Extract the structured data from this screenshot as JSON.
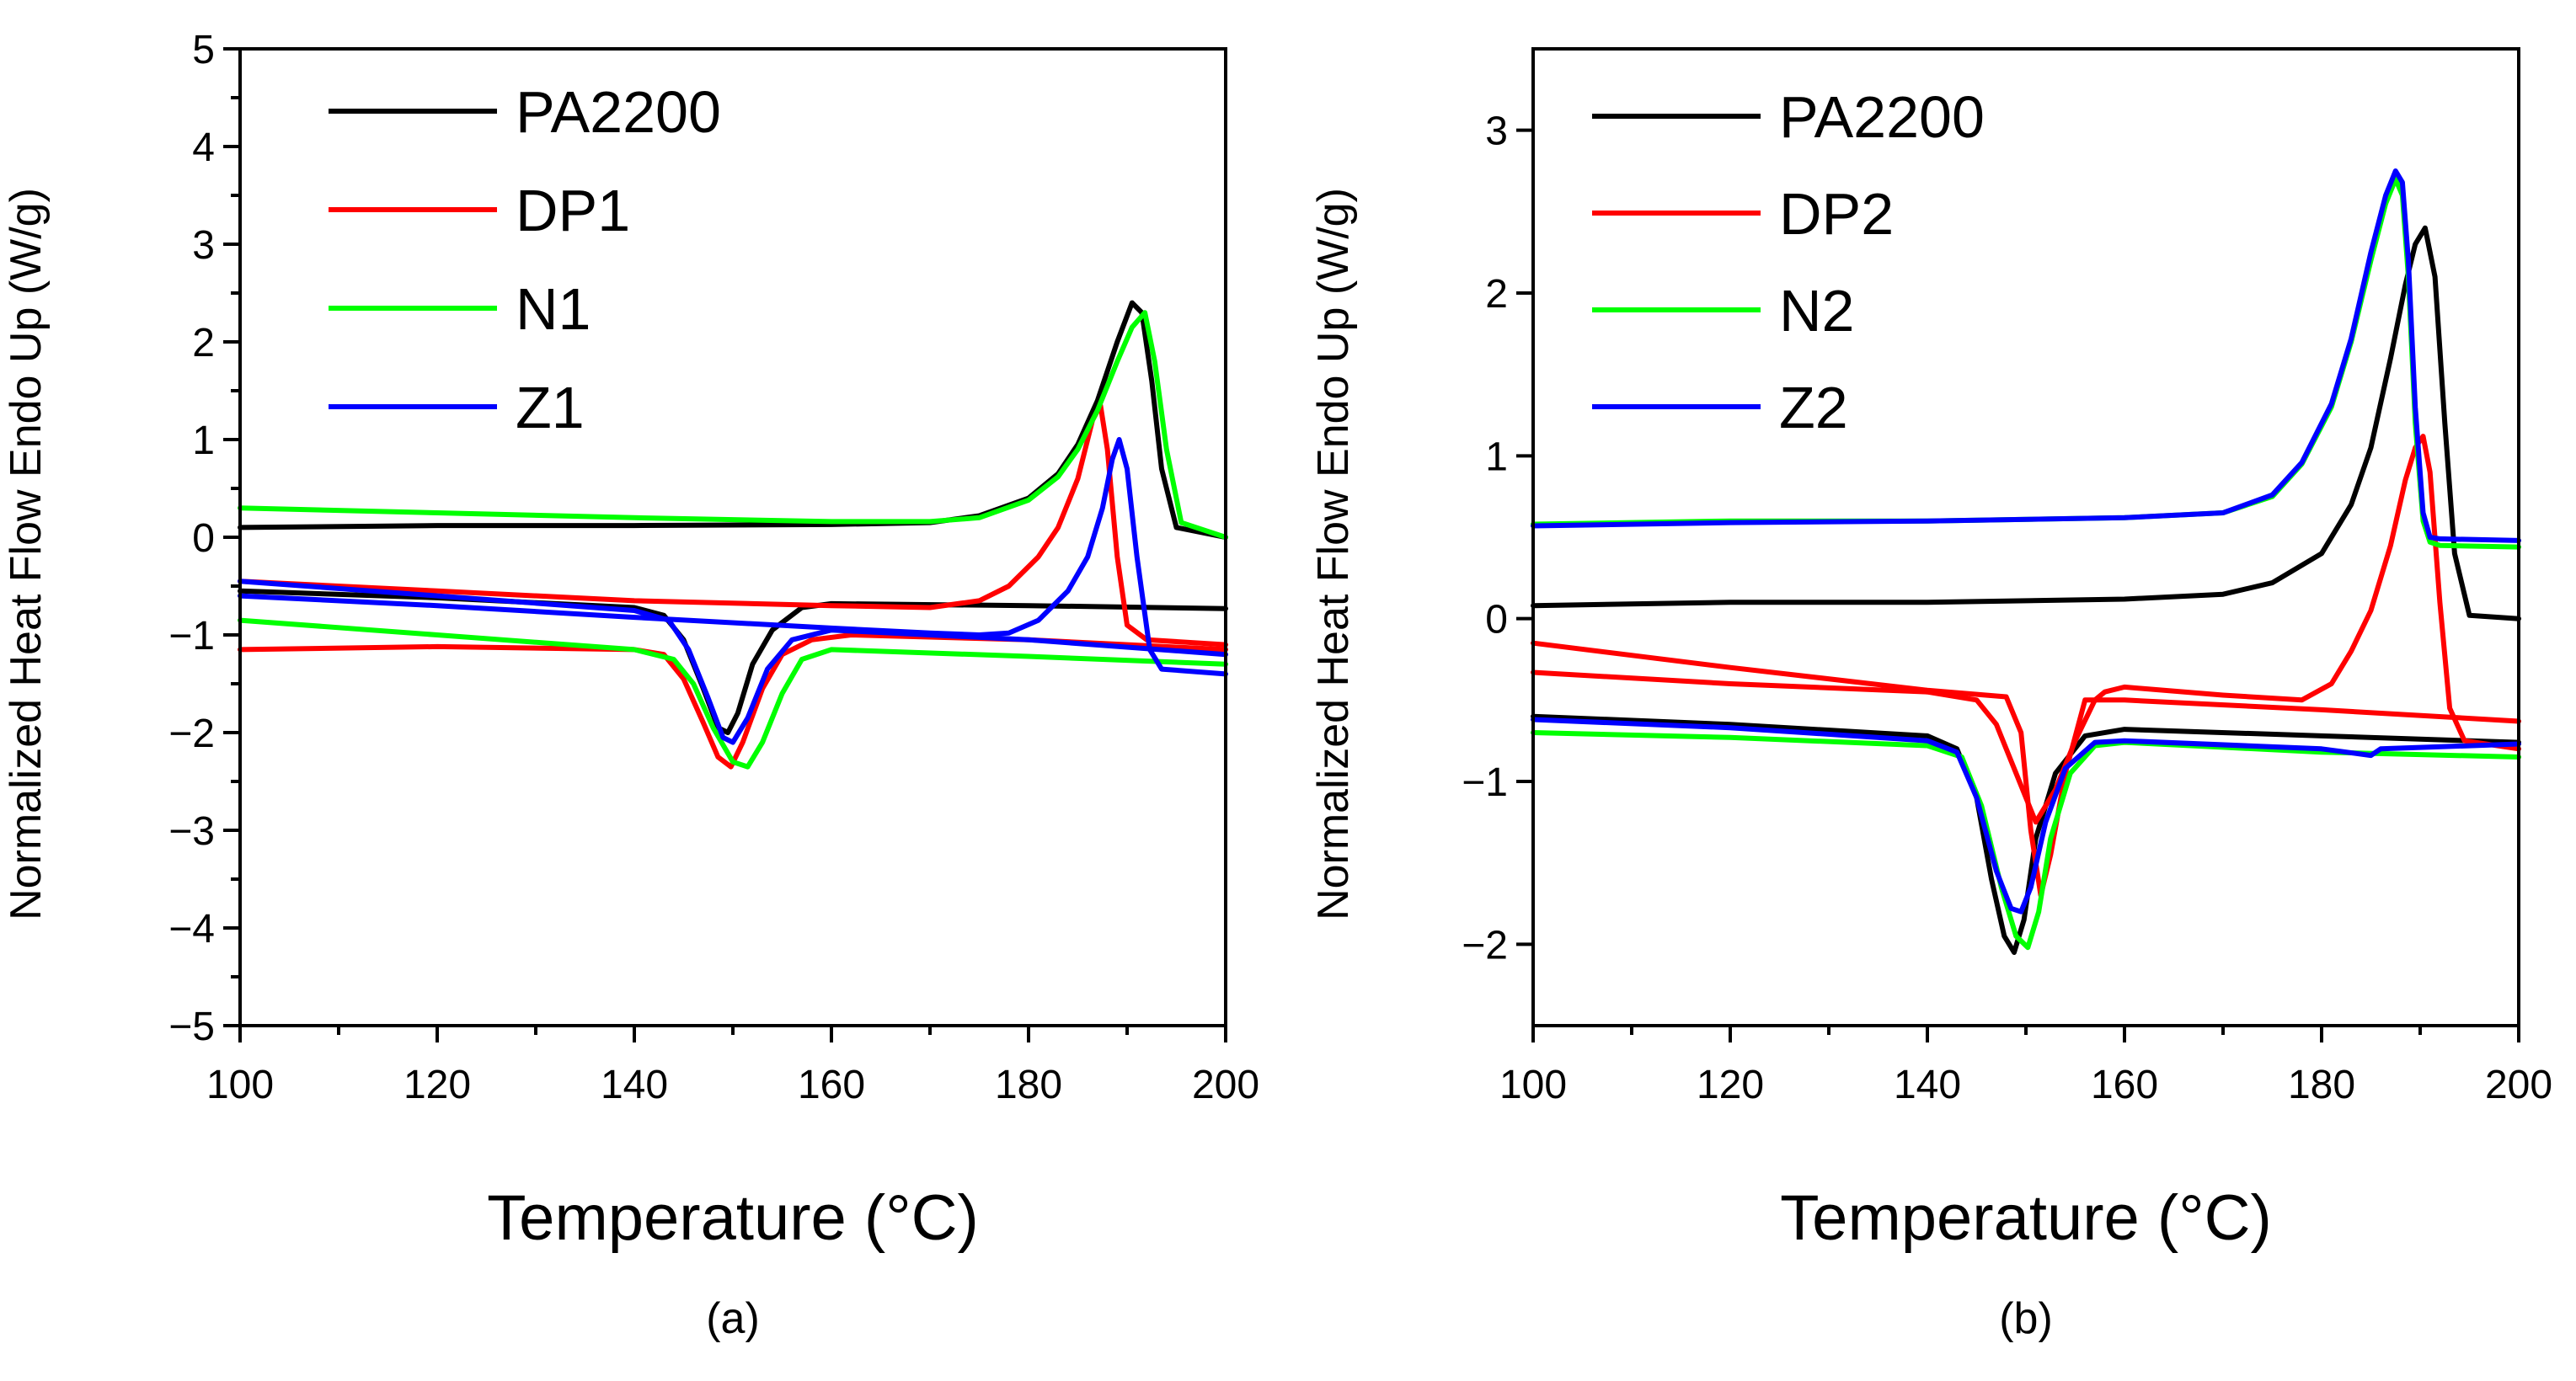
{
  "chart_data": [
    {
      "type": "line",
      "panel_label": "(a)",
      "xlabel": "Temperature (°C)",
      "ylabel": "Normalized Heat Flow Endo Up (W/g)",
      "xlim": [
        100,
        200
      ],
      "ylim": [
        -5,
        5
      ],
      "xticks": [
        100,
        120,
        140,
        160,
        180,
        200
      ],
      "yticks": [
        -5,
        -4,
        -3,
        -2,
        -1,
        0,
        1,
        2,
        3,
        4,
        5
      ],
      "xtick_labels": [
        "100",
        "120",
        "140",
        "160",
        "180",
        "200"
      ],
      "ytick_labels": [
        "−5",
        "−4",
        "−3",
        "−2",
        "−1",
        "0",
        "1",
        "2",
        "3",
        "4",
        "5"
      ],
      "legend": [
        "PA2200",
        "DP1",
        "N1",
        "Z1"
      ],
      "series": [
        {
          "name": "PA2200 heating",
          "color": "#000000",
          "x": [
            100,
            120,
            140,
            160,
            170,
            175,
            180,
            183,
            185,
            187,
            189,
            190.5,
            191.5,
            192.5,
            193.5,
            195,
            200
          ],
          "y": [
            0.1,
            0.12,
            0.12,
            0.13,
            0.15,
            0.22,
            0.4,
            0.65,
            0.95,
            1.4,
            2.0,
            2.4,
            2.3,
            1.6,
            0.7,
            0.1,
            0.0
          ]
        },
        {
          "name": "PA2200 cooling",
          "color": "#000000",
          "x": [
            100,
            120,
            140,
            143,
            145,
            147,
            148.5,
            149.5,
            150.5,
            152,
            154,
            157,
            160,
            180,
            200
          ],
          "y": [
            -0.55,
            -0.62,
            -0.72,
            -0.8,
            -1.05,
            -1.55,
            -1.95,
            -2.0,
            -1.8,
            -1.3,
            -0.95,
            -0.72,
            -0.68,
            -0.7,
            -0.73
          ]
        },
        {
          "name": "DP1 heating",
          "color": "#ff0000",
          "x": [
            100,
            120,
            140,
            160,
            170,
            175,
            178,
            181,
            183,
            185,
            186.5,
            187.3,
            188,
            189,
            190,
            192,
            200
          ],
          "y": [
            -0.45,
            -0.55,
            -0.65,
            -0.7,
            -0.72,
            -0.65,
            -0.5,
            -0.2,
            0.1,
            0.6,
            1.2,
            1.35,
            0.9,
            -0.2,
            -0.9,
            -1.05,
            -1.1
          ]
        },
        {
          "name": "DP1 cooling",
          "color": "#ff0000",
          "x": [
            100,
            120,
            140,
            143,
            145,
            147,
            148.5,
            149.8,
            151,
            153,
            155,
            158,
            162,
            180,
            200
          ],
          "y": [
            -1.15,
            -1.12,
            -1.15,
            -1.2,
            -1.45,
            -1.9,
            -2.25,
            -2.35,
            -2.1,
            -1.55,
            -1.2,
            -1.05,
            -1.0,
            -1.05,
            -1.15
          ]
        },
        {
          "name": "N1 heating",
          "color": "#00ff00",
          "x": [
            100,
            120,
            140,
            160,
            170,
            175,
            180,
            183,
            185,
            187,
            189,
            190.5,
            191.8,
            192.8,
            194,
            195.5,
            200
          ],
          "y": [
            0.3,
            0.25,
            0.2,
            0.16,
            0.16,
            0.2,
            0.38,
            0.62,
            0.9,
            1.3,
            1.8,
            2.15,
            2.3,
            1.8,
            0.9,
            0.15,
            0.0
          ]
        },
        {
          "name": "N1 cooling",
          "color": "#00ff00",
          "x": [
            100,
            120,
            140,
            144,
            146,
            148,
            150,
            151.5,
            153,
            155,
            157,
            160,
            180,
            200
          ],
          "y": [
            -0.85,
            -1.0,
            -1.15,
            -1.25,
            -1.5,
            -1.95,
            -2.3,
            -2.35,
            -2.1,
            -1.6,
            -1.25,
            -1.15,
            -1.22,
            -1.3
          ]
        },
        {
          "name": "Z1 heating",
          "color": "#0000ff",
          "x": [
            100,
            120,
            140,
            160,
            170,
            175,
            178,
            181,
            184,
            186,
            187.5,
            188.5,
            189.2,
            190,
            191,
            192.3,
            193.5,
            200
          ],
          "y": [
            -0.6,
            -0.7,
            -0.82,
            -0.93,
            -0.98,
            -1.0,
            -0.98,
            -0.85,
            -0.55,
            -0.2,
            0.3,
            0.8,
            1.0,
            0.7,
            -0.2,
            -1.15,
            -1.35,
            -1.4
          ]
        },
        {
          "name": "Z1 cooling",
          "color": "#0000ff",
          "x": [
            100,
            120,
            140,
            143.5,
            145.5,
            147.5,
            149,
            150,
            151.5,
            153.5,
            156,
            160,
            180,
            200
          ],
          "y": [
            -0.45,
            -0.6,
            -0.75,
            -0.85,
            -1.15,
            -1.65,
            -2.05,
            -2.1,
            -1.85,
            -1.35,
            -1.05,
            -0.95,
            -1.05,
            -1.2
          ]
        }
      ]
    },
    {
      "type": "line",
      "panel_label": "(b)",
      "xlabel": "Temperature (°C)",
      "ylabel": "Normalized Heat Flow Endo Up (W/g)",
      "xlim": [
        100,
        200
      ],
      "ylim": [
        -2.5,
        3.5
      ],
      "xticks": [
        100,
        120,
        140,
        160,
        180,
        200
      ],
      "yticks": [
        -2,
        -1,
        0,
        1,
        2,
        3
      ],
      "xtick_labels": [
        "100",
        "120",
        "140",
        "160",
        "180",
        "200"
      ],
      "ytick_labels": [
        "−2",
        "−1",
        "0",
        "1",
        "2",
        "3"
      ],
      "legend": [
        "PA2200",
        "DP2",
        "N2",
        "Z2"
      ],
      "series": [
        {
          "name": "PA2200 heating",
          "color": "#000000",
          "x": [
            100,
            120,
            140,
            160,
            170,
            175,
            180,
            183,
            185,
            187,
            188.5,
            189.5,
            190.5,
            191.5,
            192.5,
            193.5,
            195,
            200
          ],
          "y": [
            0.08,
            0.1,
            0.1,
            0.12,
            0.15,
            0.22,
            0.4,
            0.7,
            1.05,
            1.6,
            2.05,
            2.3,
            2.4,
            2.1,
            1.2,
            0.4,
            0.02,
            0.0
          ]
        },
        {
          "name": "PA2200 cooling",
          "color": "#000000",
          "x": [
            100,
            120,
            140,
            143,
            145,
            146.5,
            147.8,
            148.8,
            149.8,
            151,
            153,
            156,
            160,
            180,
            200
          ],
          "y": [
            -0.6,
            -0.65,
            -0.72,
            -0.8,
            -1.1,
            -1.6,
            -1.95,
            -2.05,
            -1.85,
            -1.35,
            -0.95,
            -0.72,
            -0.68,
            -0.72,
            -0.76
          ]
        },
        {
          "name": "DP2 heating",
          "color": "#ff0000",
          "x": [
            100,
            120,
            140,
            145,
            147,
            149,
            151,
            153,
            155,
            157,
            158,
            160,
            170,
            178,
            181,
            183,
            185,
            187,
            188.5,
            189.5,
            190.3,
            191,
            192,
            193,
            194.5,
            200
          ],
          "y": [
            -0.33,
            -0.4,
            -0.45,
            -0.5,
            -0.65,
            -0.95,
            -1.25,
            -1.05,
            -0.75,
            -0.5,
            -0.45,
            -0.42,
            -0.47,
            -0.5,
            -0.4,
            -0.2,
            0.05,
            0.45,
            0.85,
            1.05,
            1.12,
            0.9,
            0.1,
            -0.55,
            -0.75,
            -0.8
          ]
        },
        {
          "name": "DP2 cooling",
          "color": "#ff0000",
          "x": [
            100,
            120,
            140,
            148,
            149.5,
            150.5,
            151.5,
            152.5,
            154,
            156,
            160,
            180,
            200
          ],
          "y": [
            -0.15,
            -0.3,
            -0.44,
            -0.48,
            -0.7,
            -1.3,
            -1.7,
            -1.45,
            -0.95,
            -0.5,
            -0.5,
            -0.56,
            -0.63
          ]
        },
        {
          "name": "N2 heating",
          "color": "#00ff00",
          "x": [
            100,
            120,
            140,
            160,
            170,
            175,
            178,
            181,
            183,
            185,
            186.5,
            187.5,
            188.2,
            188.8,
            189.5,
            190.3,
            191,
            192,
            200
          ],
          "y": [
            0.58,
            0.6,
            0.6,
            0.62,
            0.65,
            0.75,
            0.95,
            1.3,
            1.7,
            2.2,
            2.55,
            2.7,
            2.6,
            2.1,
            1.2,
            0.6,
            0.47,
            0.45,
            0.44
          ]
        },
        {
          "name": "N2 cooling",
          "color": "#00ff00",
          "x": [
            100,
            120,
            140,
            143.5,
            145.5,
            147.5,
            149,
            150.2,
            151.3,
            152.5,
            154.5,
            157,
            160,
            180,
            200
          ],
          "y": [
            -0.7,
            -0.73,
            -0.78,
            -0.85,
            -1.15,
            -1.65,
            -1.95,
            -2.02,
            -1.8,
            -1.35,
            -0.95,
            -0.78,
            -0.76,
            -0.82,
            -0.85
          ]
        },
        {
          "name": "Z2 heating",
          "color": "#0000ff",
          "x": [
            100,
            120,
            140,
            160,
            170,
            175,
            178,
            181,
            183,
            185,
            186.5,
            187.5,
            188.2,
            188.8,
            189.5,
            190.3,
            191,
            192,
            200
          ],
          "y": [
            0.57,
            0.59,
            0.6,
            0.62,
            0.65,
            0.76,
            0.96,
            1.32,
            1.72,
            2.25,
            2.6,
            2.75,
            2.68,
            2.2,
            1.3,
            0.65,
            0.5,
            0.49,
            0.48
          ]
        },
        {
          "name": "Z2 cooling",
          "color": "#0000ff",
          "x": [
            100,
            120,
            140,
            143,
            145,
            147,
            148.5,
            149.5,
            150.5,
            152,
            154,
            157,
            160,
            180,
            185,
            186,
            200
          ],
          "y": [
            -0.62,
            -0.67,
            -0.75,
            -0.82,
            -1.1,
            -1.55,
            -1.78,
            -1.8,
            -1.65,
            -1.25,
            -0.92,
            -0.76,
            -0.75,
            -0.8,
            -0.84,
            -0.8,
            -0.77
          ]
        }
      ]
    }
  ]
}
